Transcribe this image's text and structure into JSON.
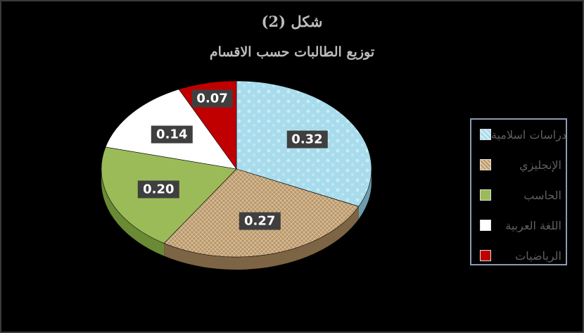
{
  "chart_data": {
    "type": "pie",
    "title": "شكل (2)",
    "subtitle": "توزيع الطالبات حسب الاقسام",
    "categories": [
      "دراسات اسلامية",
      "الإنجليزي",
      "الحاسب",
      "اللغة العربية",
      "الرياضيات"
    ],
    "values": [
      0.32,
      0.27,
      0.2,
      0.14,
      0.07
    ],
    "value_labels": [
      "0.32",
      "0.27",
      "0.20",
      "0.14",
      "0.07"
    ],
    "colors": [
      "#a8dcec",
      "#b8956a",
      "#9bbb59",
      "#ffffff",
      "#c00000"
    ],
    "legend_position": "right",
    "style": "3d-pie"
  }
}
